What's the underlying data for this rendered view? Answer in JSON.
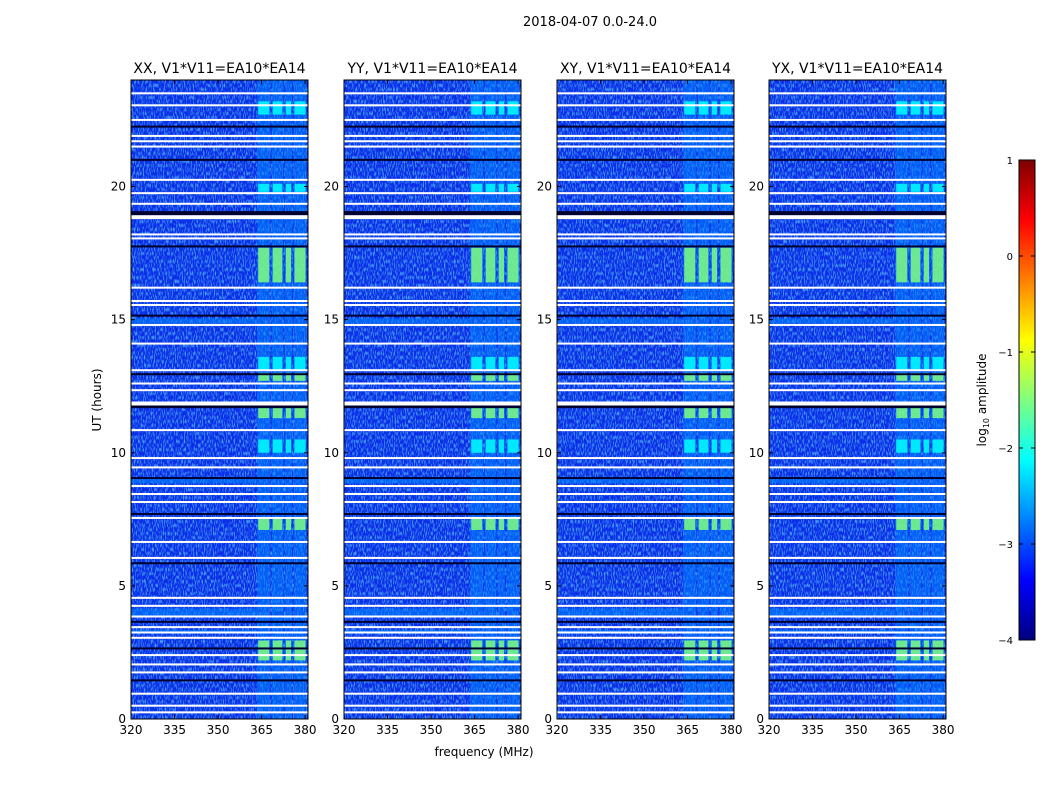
{
  "figure": {
    "suptitle": "2018-04-07 0.0-24.0"
  },
  "colors": {
    "background": "#00008f",
    "colormap": [
      "#00007f",
      "#0000ff",
      "#007fff",
      "#00ffff",
      "#7fff7f",
      "#ffff00",
      "#ff7f00",
      "#ff0000",
      "#7f0000"
    ]
  },
  "chart_data": {
    "type": "heatmap",
    "xlabel": "frequency (MHz)",
    "ylabel": "UT (hours)",
    "xlim": [
      320,
      381
    ],
    "ylim": [
      0,
      24
    ],
    "xticks": [
      320,
      335,
      350,
      365,
      380
    ],
    "xtick_labels": [
      "320",
      "335",
      "350",
      "365",
      "380"
    ],
    "yticks": [
      0,
      5,
      10,
      15,
      20
    ],
    "ytick_labels": [
      "0",
      "5",
      "10",
      "15",
      "20"
    ],
    "panels": [
      {
        "title": "XX, V1*V11=EA10*EA14"
      },
      {
        "title": "YY, V1*V11=EA10*EA14"
      },
      {
        "title": "XY, V1*V11=EA10*EA14"
      },
      {
        "title": "YX, V1*V11=EA10*EA14"
      }
    ],
    "colorbar": {
      "label_base": "log",
      "label_sub": "10",
      "label_rest": " amplitude",
      "range": [
        -4,
        1
      ],
      "ticks": [
        -4,
        -3,
        -2,
        -1,
        0,
        1
      ],
      "tick_labels": [
        "−4",
        "−3",
        "−2",
        "−1",
        "0",
        "1"
      ]
    },
    "bright_band_mhz": [
      363.5,
      380.5
    ],
    "bright_subbands_mhz": [
      [
        363.5,
        368
      ],
      [
        368.5,
        372.5
      ],
      [
        373,
        375.5
      ],
      [
        376,
        380.5
      ]
    ],
    "flagged_time_gaps_hours": [
      0.25,
      0.5,
      0.95,
      1.45,
      1.75,
      2.05,
      2.4,
      2.65,
      3.05,
      3.25,
      3.45,
      3.65,
      3.85,
      4.25,
      4.55,
      5.85,
      6.05,
      6.65,
      7.55,
      7.7,
      8.15,
      8.45,
      8.75,
      9.05,
      9.45,
      9.8,
      10.85,
      11.75,
      11.85,
      12.35,
      12.6,
      12.95,
      13.1,
      14.1,
      14.8,
      15.15,
      15.55,
      15.7,
      16.2,
      17.75,
      18.05,
      18.2,
      18.85,
      19.0,
      19.35,
      19.75,
      20.25,
      21.0,
      21.5,
      21.7,
      21.9,
      22.25,
      22.5,
      23.05,
      23.5
    ],
    "bright_time_segments_hours": [
      [
        2.2,
        2.95,
        -1.3
      ],
      [
        7.1,
        7.55,
        -1.5
      ],
      [
        10.0,
        10.5,
        -1.6
      ],
      [
        11.3,
        11.7,
        -1.2
      ],
      [
        12.7,
        13.0,
        -1.5
      ],
      [
        13.1,
        13.6,
        -1.7
      ],
      [
        16.4,
        17.7,
        -1.4
      ],
      [
        19.8,
        20.1,
        -1.7
      ],
      [
        22.7,
        23.2,
        -1.6
      ]
    ],
    "low_band_bright_rows_hours": [
      [
        3.2,
        3.35
      ],
      [
        3.85,
        4.15
      ],
      [
        8.85,
        9.05
      ],
      [
        14.85,
        15.05
      ]
    ]
  }
}
